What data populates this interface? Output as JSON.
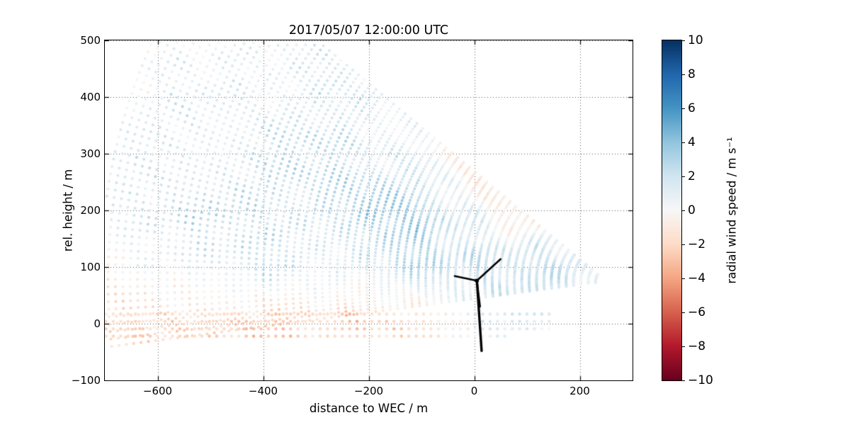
{
  "title": "2017/05/07 12:00:00 UTC",
  "axes": {
    "xlabel": "distance to WEC / m",
    "ylabel": "rel. height / m",
    "xlim": [
      -700,
      300
    ],
    "ylim": [
      -100,
      500
    ],
    "xticks": [
      -600,
      -400,
      -200,
      0,
      200
    ],
    "yticks": [
      -100,
      0,
      100,
      200,
      300,
      400,
      500
    ],
    "grid": true
  },
  "colorbar": {
    "label": "radial wind speed / m s⁻¹",
    "range": [
      -10,
      10
    ],
    "ticks": [
      10,
      8,
      6,
      4,
      2,
      0,
      -2,
      -4,
      -6,
      -8,
      -10
    ],
    "colormap": "RdBu",
    "colors": [
      "#67001f",
      "#b2182b",
      "#d6604d",
      "#f4a582",
      "#fddbc7",
      "#f7f7f7",
      "#d1e5f0",
      "#92c5de",
      "#4393c3",
      "#2166ac",
      "#053061"
    ]
  },
  "chart_data": {
    "type": "scatter",
    "description": "Lidar RHI scan: fan of range-gate dots colored by radial wind speed around a wind energy converter (WEC), turbine silhouette near x=0. Values mostly between -3 and +4 m/s.",
    "scan": {
      "origin": [
        250,
        75
      ],
      "elev_min_deg": -7,
      "elev_max_deg": 38,
      "elev_step_deg": 0.8,
      "range_min_m": 20,
      "range_max_m": 960,
      "range_step_m": 14,
      "dot_radius_px": 2.1
    },
    "ground_band": {
      "x_min": -698,
      "spacing_m": 14,
      "dot_radius_px": 2.3,
      "rows": [
        {
          "y": -22,
          "x_max": 60
        },
        {
          "y": -9,
          "x_max": 150
        },
        {
          "y": 4,
          "x_max": 150
        },
        {
          "y": 17,
          "x_max": 150
        }
      ]
    },
    "field_grid": {
      "x": [
        -700,
        -600,
        -500,
        -400,
        -300,
        -200,
        -100,
        0,
        100,
        200,
        300
      ],
      "y": [
        -50,
        0,
        100,
        200,
        300,
        400,
        500
      ],
      "values": [
        [
          -1.2,
          -1.8,
          -2.2,
          -2.8,
          -2.2,
          -2.0,
          -1.2,
          0.3,
          0.0,
          0.0,
          0.0
        ],
        [
          -2.0,
          -1.5,
          -2.5,
          -3.0,
          -1.8,
          -2.8,
          -1.5,
          0.8,
          1.2,
          0.0,
          0.0
        ],
        [
          -1.2,
          0.5,
          1.5,
          2.2,
          1.0,
          1.8,
          2.5,
          2.0,
          2.5,
          1.0,
          0.0
        ],
        [
          1.2,
          2.2,
          2.8,
          1.8,
          2.5,
          3.8,
          3.2,
          0.5,
          -1.5,
          0.0,
          0.0
        ],
        [
          0.8,
          1.8,
          1.2,
          2.2,
          2.8,
          1.5,
          0.5,
          -1.2,
          0.0,
          0.0,
          0.0
        ],
        [
          -0.5,
          1.0,
          1.5,
          0.8,
          1.8,
          1.2,
          -1.0,
          -1.8,
          0.0,
          0.0,
          0.0
        ],
        [
          0.5,
          0.8,
          0.3,
          1.2,
          1.5,
          -0.5,
          -1.5,
          -0.5,
          0.0,
          0.0,
          0.0
        ]
      ]
    },
    "noise": {
      "amp": 0.9,
      "jitter": 0.45
    },
    "turbine": {
      "color": "#000000",
      "hub": [
        5,
        76
      ],
      "tower_base": [
        14,
        -48
      ],
      "blade_tips": [
        [
          50,
          114
        ],
        [
          -37,
          84
        ],
        [
          11,
          30
        ]
      ]
    }
  }
}
